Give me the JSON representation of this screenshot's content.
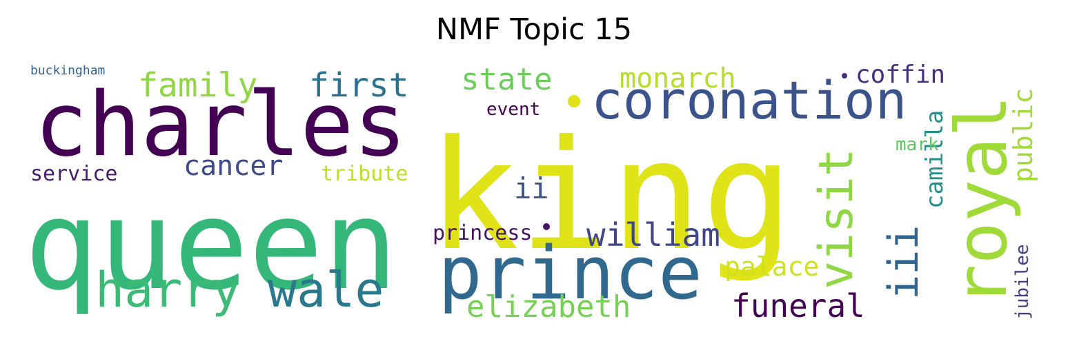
{
  "title": "NMF Topic 15",
  "words": [
    {
      "text": "king",
      "color": "#dfe318"
    },
    {
      "text": "queen",
      "color": "#35b779"
    },
    {
      "text": "charles",
      "color": "#440154"
    },
    {
      "text": "prince",
      "color": "#31688e"
    },
    {
      "text": "royal",
      "color": "#a0da39"
    },
    {
      "text": "coronation",
      "color": "#3b528b"
    },
    {
      "text": "harry",
      "color": "#3bbb75"
    },
    {
      "text": "wale",
      "color": "#2a788e"
    },
    {
      "text": "visit",
      "color": "#8fd744"
    },
    {
      "text": "iii",
      "color": "#32648e"
    },
    {
      "text": "family",
      "color": "#90d743"
    },
    {
      "text": "first",
      "color": "#2c728e"
    },
    {
      "text": "state",
      "color": "#6ccd5a"
    },
    {
      "text": "monarch",
      "color": "#b5de2b"
    },
    {
      "text": "coffin",
      "color": "#46307e"
    },
    {
      "text": "public",
      "color": "#a2da37"
    },
    {
      "text": "william",
      "color": "#404688"
    },
    {
      "text": "elizabeth",
      "color": "#75d054"
    },
    {
      "text": "funeral",
      "color": "#440154"
    },
    {
      "text": "cancer",
      "color": "#3e4989"
    },
    {
      "text": "camilla",
      "color": "#218f8d"
    },
    {
      "text": "ii",
      "color": "#3b528b"
    },
    {
      "text": "princess",
      "color": "#471164"
    },
    {
      "text": "palace",
      "color": "#d0e11c"
    },
    {
      "text": "jubilee",
      "color": "#433e85"
    },
    {
      "text": "service",
      "color": "#481b6d"
    },
    {
      "text": "tribute",
      "color": "#bddf26"
    },
    {
      "text": "event",
      "color": "#440154"
    },
    {
      "text": "mark",
      "color": "#5ec962"
    },
    {
      "text": "buckingham",
      "color": "#33638d"
    }
  ]
}
